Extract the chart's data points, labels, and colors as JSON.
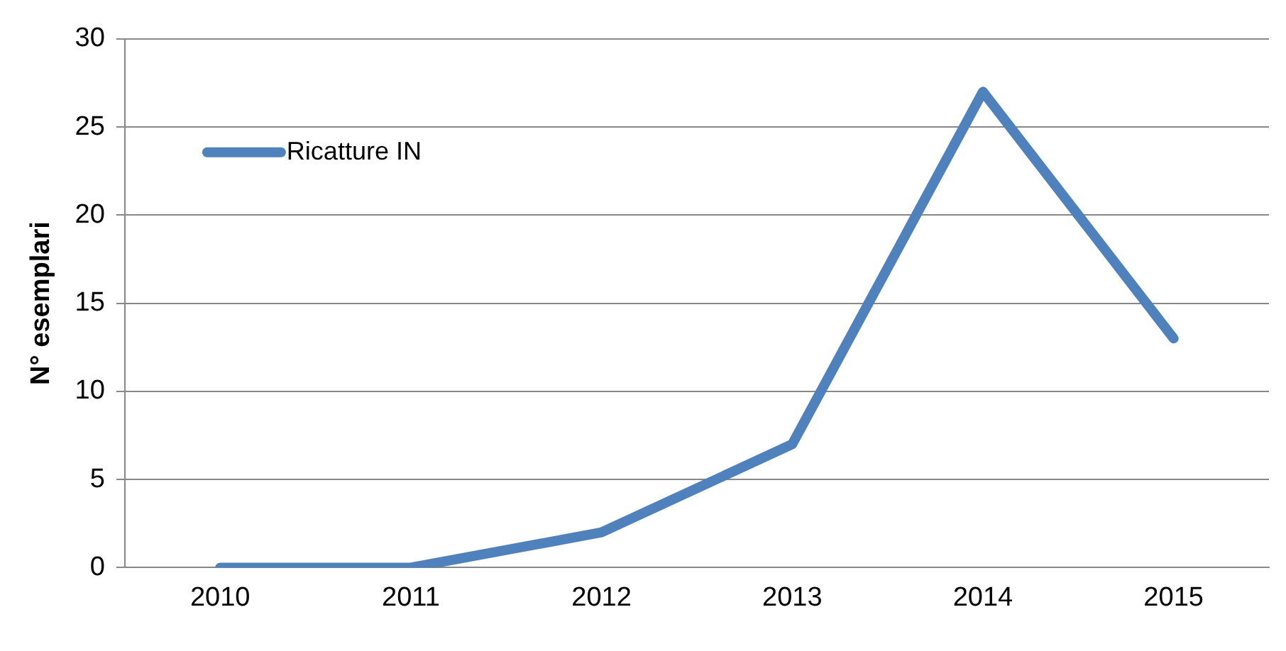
{
  "chart_data": {
    "type": "line",
    "ylabel": "N° esemplari",
    "categories": [
      "2010",
      "2011",
      "2012",
      "2013",
      "2014",
      "2015"
    ],
    "series": [
      {
        "name": "Ricatture IN",
        "color": "#4f81bd",
        "values": [
          0,
          0,
          2,
          7,
          27,
          13
        ]
      }
    ],
    "ylim": [
      0,
      30
    ],
    "yticks": [
      0,
      5,
      10,
      15,
      20,
      25,
      30
    ],
    "grid": "y",
    "legend": "top left",
    "marker": "none",
    "line_style": "solid"
  }
}
